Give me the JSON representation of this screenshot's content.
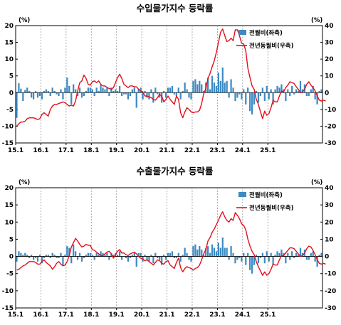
{
  "colors": {
    "bar": "#3B8AC4",
    "line": "#E3101C",
    "grid": "#999999",
    "axis": "#000000"
  },
  "chart_data": [
    {
      "type": "bar+line",
      "title": "수입물가지수 등락률",
      "left_unit": "(%)",
      "right_unit": "(%)",
      "left_ylim": [
        -15,
        20
      ],
      "right_ylim": [
        -30,
        40
      ],
      "left_ticks": [
        "20",
        "15",
        "10",
        "5",
        "0",
        "-5",
        "-10",
        "-15"
      ],
      "right_ticks": [
        "40",
        "30",
        "20",
        "10",
        "0",
        "-10",
        "-20",
        "-30"
      ],
      "x_ticks": [
        "15.1",
        "16.1",
        "17.1",
        "18.1",
        "19.1",
        "20.1",
        "21.1",
        "22.1",
        "23.1",
        "24.1",
        "25.1"
      ],
      "legend_bar": "전월비(좌축)",
      "legend_line": "전년동월비(우축)",
      "bar_values": [
        -7.5,
        2.8,
        1.2,
        -2.5,
        0.8,
        1.5,
        0.5,
        -1.5,
        -2.0,
        0.5,
        -1.5,
        -1.0,
        -2.0,
        0.5,
        1.0,
        0.5,
        -1.0,
        1.5,
        0.5,
        -0.5,
        -1.0,
        1.0,
        -2.0,
        1.5,
        4.5,
        2.0,
        -3.5,
        2.5,
        1.0,
        -1.0,
        1.5,
        -1.5,
        -1.0,
        0.5,
        1.5,
        1.5,
        1.0,
        -1.0,
        1.5,
        0.5,
        2.5,
        1.5,
        1.0,
        1.5,
        -1.0,
        1.5,
        0.5,
        1.0,
        0.5,
        2.0,
        -1.0,
        -0.5,
        -0.5,
        -2.0,
        -1.0,
        1.0,
        1.5,
        -4.5,
        1.0,
        1.5,
        -2.0,
        0.5,
        -1.5,
        -2.0,
        1.0,
        -3.0,
        1.5,
        -0.5,
        -1.5,
        -3.0,
        0.5,
        -1.5,
        1.5,
        1.5,
        2.0,
        -0.5,
        -1.0,
        1.5,
        -2.0,
        0.5,
        3.0,
        1.0,
        -1.5,
        -2.0,
        3.5,
        4.0,
        2.5,
        3.5,
        2.5,
        0.5,
        3.0,
        4.5,
        1.0,
        5.0,
        3.0,
        2.0,
        6.0,
        3.5,
        7.5,
        3.0,
        3.5,
        -1.5,
        4.0,
        1.5,
        -2.5,
        -1.5,
        -0.5,
        -2.0,
        1.0,
        -3.5,
        1.5,
        -5.5,
        -6.5,
        -3.5,
        0.5,
        -3.0,
        -1.0,
        1.5,
        -2.5,
        2.0,
        -2.0,
        1.0,
        -3.5,
        1.0,
        2.0,
        1.5,
        2.5,
        1.0,
        -2.5,
        1.0,
        -1.0,
        2.0,
        -0.5,
        1.0,
        0.5,
        3.5,
        1.0,
        2.5,
        -1.0,
        -1.0,
        1.0,
        2.0,
        -2.0,
        -3.5,
        0.5,
        1.0
      ],
      "line_values": [
        -20.0,
        -18.5,
        -17.5,
        -17.5,
        -17.0,
        -15.5,
        -15.0,
        -15.0,
        -15.0,
        -15.5,
        -16.0,
        -15.5,
        -13.0,
        -12.0,
        -13.0,
        -14.0,
        -10.0,
        -8.0,
        -7.0,
        -7.0,
        -6.5,
        -6.0,
        -5.5,
        -6.0,
        -7.0,
        -8.0,
        -7.5,
        -8.0,
        -5.0,
        1.0,
        6.0,
        7.0,
        10.5,
        8.5,
        5.0,
        4.5,
        6.5,
        7.0,
        6.0,
        7.0,
        5.0,
        4.0,
        4.0,
        3.0,
        2.5,
        2.0,
        3.0,
        6.0,
        9.0,
        11.0,
        8.5,
        5.0,
        4.0,
        3.0,
        4.0,
        4.0,
        3.5,
        3.5,
        2.0,
        1.0,
        0.5,
        -2.0,
        -2.0,
        -2.5,
        -3.0,
        -4.0,
        -4.5,
        -3.0,
        -1.0,
        -2.0,
        -5.5,
        -4.0,
        -2.0,
        -4.0,
        -5.5,
        -7.0,
        -2.0,
        -4.0,
        -12.0,
        -15.0,
        -11.5,
        -9.0,
        -10.0,
        -11.5,
        -12.0,
        -11.5,
        -11.5,
        -10.5,
        -6.5,
        -0.5,
        2.5,
        8.5,
        11.5,
        15.5,
        19.0,
        24.0,
        30.0,
        36.0,
        38.0,
        34.0,
        30.5,
        31.0,
        32.5,
        31.0,
        37.5,
        37.5,
        34.0,
        29.5,
        29.0,
        25.0,
        14.5,
        9.0,
        4.0,
        2.0,
        -4.0,
        -7.0,
        -11.5,
        -15.5,
        -11.0,
        -13.5,
        -12.5,
        -9.0,
        -4.5,
        -5.5,
        -5.5,
        -2.0,
        1.0,
        0.5,
        3.0,
        4.5,
        6.5,
        6.0,
        5.5,
        3.5,
        2.0,
        0.0,
        0.5,
        2.0,
        5.0,
        6.5,
        4.5,
        3.0,
        1.0,
        -2.0,
        -4.5,
        -5.0,
        -4.5,
        -5.0
      ]
    },
    {
      "type": "bar+line",
      "title": "수출물가지수 등락률",
      "left_unit": "(%)",
      "right_unit": "(%)",
      "left_ylim": [
        -15,
        20
      ],
      "right_ylim": [
        -30,
        40
      ],
      "left_ticks": [
        "20",
        "15",
        "10",
        "5",
        "0",
        "-5",
        "-10",
        "-15"
      ],
      "right_ticks": [
        "40",
        "30",
        "20",
        "10",
        "0",
        "-10",
        "-20",
        "-30"
      ],
      "x_ticks": [
        "15.1",
        "16.1",
        "17.1",
        "18.1",
        "19.1",
        "20.1",
        "21.1",
        "22.1",
        "23.1",
        "24.1",
        "25.1"
      ],
      "legend_bar": "전월비(좌축)",
      "legend_line": "전년동월비(우축)",
      "bar_values": [
        -1.5,
        1.5,
        1.0,
        0.5,
        1.0,
        0.5,
        -0.5,
        0.5,
        -1.0,
        -0.5,
        -1.5,
        0.5,
        -2.0,
        -0.5,
        0.5,
        0.5,
        -0.5,
        1.0,
        0.5,
        -0.5,
        -0.5,
        1.0,
        -2.5,
        0.5,
        3.0,
        2.5,
        -2.0,
        3.5,
        1.5,
        -1.0,
        1.0,
        -1.5,
        -0.5,
        0.5,
        1.0,
        1.0,
        0.5,
        -1.0,
        1.0,
        0.5,
        1.5,
        1.0,
        0.5,
        1.0,
        -1.0,
        1.0,
        0.5,
        1.0,
        0.5,
        1.5,
        -1.0,
        0.0,
        -0.5,
        -1.5,
        -0.5,
        0.5,
        1.0,
        -3.0,
        1.0,
        1.0,
        -1.5,
        0.5,
        -1.0,
        -1.5,
        0.5,
        -2.0,
        1.0,
        -0.5,
        -1.0,
        -2.5,
        0.5,
        -1.0,
        1.0,
        1.0,
        1.5,
        -0.5,
        -0.5,
        1.0,
        -1.5,
        0.5,
        2.5,
        1.0,
        -1.0,
        -1.5,
        3.0,
        3.5,
        2.0,
        3.0,
        2.0,
        0.5,
        2.5,
        3.0,
        1.0,
        3.5,
        2.5,
        1.5,
        4.0,
        2.5,
        5.5,
        2.5,
        2.5,
        -1.0,
        3.0,
        1.0,
        -2.0,
        -1.0,
        -0.5,
        -1.5,
        1.0,
        -2.5,
        1.0,
        -4.0,
        -5.0,
        -2.5,
        0.5,
        -2.0,
        -0.5,
        1.0,
        -2.0,
        1.5,
        -1.5,
        1.0,
        -2.5,
        0.5,
        1.5,
        1.0,
        2.0,
        1.0,
        -2.0,
        1.0,
        -1.0,
        1.5,
        -0.5,
        1.0,
        0.5,
        2.5,
        1.0,
        2.0,
        -1.0,
        -1.0,
        1.0,
        1.5,
        -1.5,
        -3.0,
        0.5,
        1.0
      ],
      "line_values": [
        -8.0,
        -7.5,
        -6.5,
        -5.5,
        -5.0,
        -4.0,
        -3.0,
        -3.0,
        -3.0,
        -3.5,
        -4.5,
        -4.5,
        -3.0,
        -2.0,
        -3.5,
        -4.5,
        -5.5,
        -7.5,
        -6.0,
        -4.0,
        -3.0,
        -4.5,
        -5.5,
        -5.0,
        -3.0,
        0.5,
        5.5,
        8.0,
        10.5,
        9.0,
        7.0,
        5.5,
        6.0,
        7.0,
        6.5,
        6.5,
        4.0,
        3.5,
        2.5,
        1.5,
        0.5,
        0.5,
        1.5,
        2.5,
        3.0,
        1.5,
        -1.0,
        1.0,
        3.0,
        4.0,
        2.0,
        2.0,
        1.0,
        0.5,
        1.5,
        2.0,
        2.5,
        1.5,
        0.0,
        -1.0,
        -1.5,
        -2.5,
        -2.0,
        -3.0,
        -4.0,
        -5.0,
        -3.5,
        -2.0,
        -2.5,
        -4.0,
        -4.5,
        -3.0,
        -2.5,
        -5.0,
        -6.0,
        -7.0,
        -3.5,
        -1.0,
        -6.5,
        -9.0,
        -7.0,
        -6.0,
        -6.5,
        -7.0,
        -8.0,
        -7.0,
        -6.5,
        -5.0,
        -2.0,
        1.5,
        4.0,
        9.0,
        11.0,
        14.0,
        16.0,
        18.5,
        21.0,
        24.0,
        26.0,
        23.0,
        21.0,
        20.0,
        22.0,
        21.0,
        25.5,
        24.0,
        22.0,
        19.0,
        18.0,
        15.5,
        10.0,
        6.0,
        3.0,
        1.0,
        -3.0,
        -6.0,
        -8.5,
        -11.0,
        -9.0,
        -11.0,
        -10.0,
        -7.5,
        -4.5,
        -5.0,
        -5.0,
        -2.0,
        0.5,
        0.5,
        2.0,
        3.5,
        5.0,
        5.0,
        4.5,
        3.0,
        1.5,
        0.0,
        0.5,
        2.0,
        4.5,
        6.0,
        5.5,
        3.5,
        1.0,
        -2.0,
        -4.0,
        -4.5,
        -4.0,
        -4.5
      ]
    }
  ]
}
